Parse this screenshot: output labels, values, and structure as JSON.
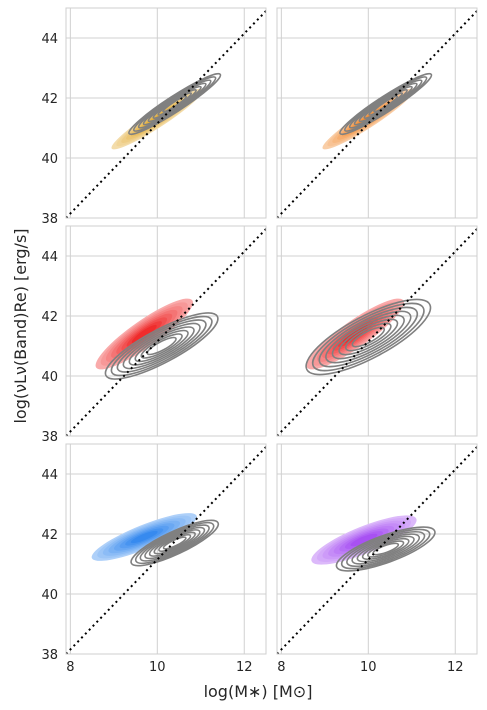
{
  "chart_data": {
    "type": "kde-contour",
    "layout": {
      "rows": 3,
      "cols": 2,
      "sharex": true,
      "sharey": true
    },
    "xlabel": "log(M$_*$) [M$_\\odot$]",
    "xlabel_display": "log(M∗) [M⊙]",
    "ylabel": "log($\\nu$L$_\\nu$(Band)$_{R_e}$) [erg/s]",
    "ylabel_display": "log(νLν(Band)Re) [erg/s]",
    "xlim": [
      7.9,
      12.5
    ],
    "ylim": [
      38,
      45
    ],
    "xticks": [
      8,
      10,
      12
    ],
    "yticks": [
      38,
      40,
      42,
      44
    ],
    "grid": true,
    "reference_line": {
      "style": "dotted",
      "color": "#000000",
      "x": [
        7.9,
        12.5
      ],
      "y": [
        38,
        44.9
      ]
    },
    "panels": [
      {
        "filled": {
          "color": "#e0a31e",
          "center": [
            10.0,
            41.3
          ],
          "angle_deg": 33,
          "sx": 1.25,
          "sy": 0.28
        },
        "contour": {
          "color": "#808080",
          "center": [
            10.4,
            41.8
          ],
          "angle_deg": 33,
          "sx": 1.25,
          "sy": 0.26
        }
      },
      {
        "filled": {
          "color": "#f07d18",
          "center": [
            10.0,
            41.3
          ],
          "angle_deg": 33,
          "sx": 1.25,
          "sy": 0.28
        },
        "contour": {
          "color": "#808080",
          "center": [
            10.4,
            41.8
          ],
          "angle_deg": 33,
          "sx": 1.25,
          "sy": 0.26
        }
      },
      {
        "filled": {
          "color": "#ee1f1f",
          "center": [
            9.7,
            41.4
          ],
          "angle_deg": 35,
          "sx": 1.35,
          "sy": 0.45
        },
        "contour": {
          "color": "#808080",
          "center": [
            10.1,
            41.0
          ],
          "angle_deg": 28,
          "sx": 1.45,
          "sy": 0.55
        }
      },
      {
        "filled": {
          "color": "#ee1f1f",
          "center": [
            9.7,
            41.4
          ],
          "angle_deg": 35,
          "sx": 1.35,
          "sy": 0.45
        },
        "contour": {
          "color": "#808080",
          "center": [
            10.0,
            41.3
          ],
          "angle_deg": 28,
          "sx": 1.6,
          "sy": 0.7
        }
      },
      {
        "filled": {
          "color": "#2a82ee",
          "center": [
            9.7,
            41.9
          ],
          "angle_deg": 22,
          "sx": 1.3,
          "sy": 0.4
        },
        "contour": {
          "color": "#808080",
          "center": [
            10.4,
            41.7
          ],
          "angle_deg": 25,
          "sx": 1.1,
          "sy": 0.38
        }
      },
      {
        "filled": {
          "color": "#a246f2",
          "center": [
            9.9,
            41.8
          ],
          "angle_deg": 22,
          "sx": 1.3,
          "sy": 0.45
        },
        "contour": {
          "color": "#808080",
          "center": [
            10.4,
            41.5
          ],
          "angle_deg": 20,
          "sx": 1.2,
          "sy": 0.45
        }
      }
    ]
  }
}
